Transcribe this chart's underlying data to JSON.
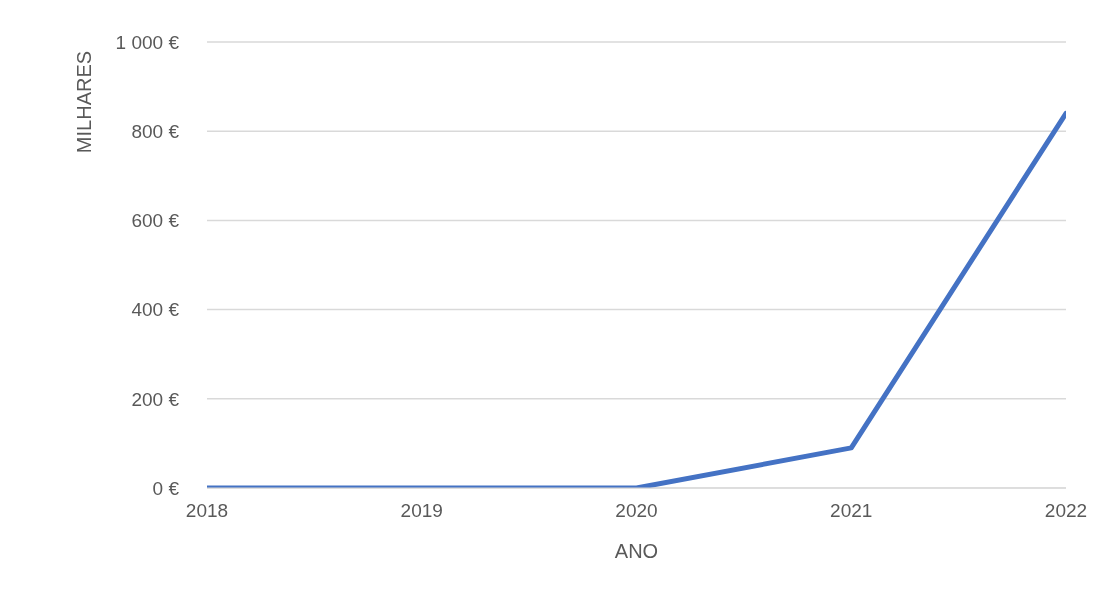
{
  "chart_data": {
    "type": "line",
    "xlabel": "ANO",
    "ylabel": "MILHARES",
    "x": [
      2018,
      2019,
      2020,
      2021,
      2022
    ],
    "series": [
      {
        "color": "#4472c4",
        "values": [
          0,
          0,
          0,
          90,
          840
        ]
      }
    ],
    "xlim": [
      2018,
      2022
    ],
    "xticks": [
      2018,
      2019,
      2020,
      2021,
      2022
    ],
    "ylim": [
      0,
      1000
    ],
    "yticks": [
      {
        "value": 0,
        "label": "0 €"
      },
      {
        "value": 200,
        "label": "200 €"
      },
      {
        "value": 400,
        "label": "400 €"
      },
      {
        "value": 600,
        "label": "600 €"
      },
      {
        "value": 800,
        "label": "800 €"
      },
      {
        "value": 1000,
        "label": "1 000 €"
      }
    ],
    "grid": "y",
    "marker": "none",
    "line_style": "solid"
  }
}
